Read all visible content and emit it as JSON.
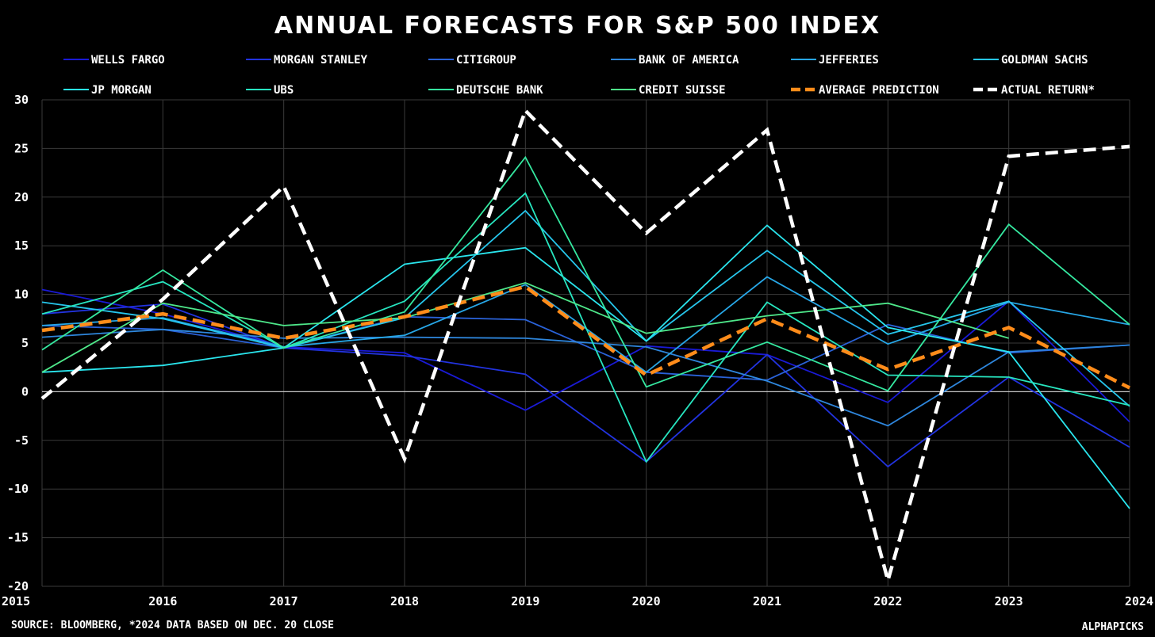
{
  "chart_data": {
    "type": "line",
    "title": "ANNUAL FORECASTS FOR S&P 500 INDEX",
    "source_note": "SOURCE: BLOOMBERG, *2024 DATA BASED ON DEC. 20 CLOSE",
    "watermark": "ALPHAPICKS",
    "x": [
      "2015",
      "2016",
      "2017",
      "2018",
      "2019",
      "2020",
      "2021",
      "2022",
      "2023",
      "2024"
    ],
    "xlabel": "",
    "ylabel": "",
    "ylim": [
      -20,
      30
    ],
    "yticks": [
      "30",
      "25",
      "20",
      "15",
      "10",
      "5",
      "0",
      "-5",
      "-10",
      "-15",
      "-20"
    ],
    "grid": true,
    "legend_position": "top",
    "series": [
      {
        "name": "WELLS FARGO",
        "color": "#1a1ad6",
        "dashed": false,
        "values": [
          10.5,
          8.0,
          4.6,
          4.0,
          -1.9,
          4.7,
          3.8,
          -1.1,
          9.3,
          -3.1
        ]
      },
      {
        "name": "MORGAN STANLEY",
        "color": "#2233e0",
        "dashed": false,
        "values": [
          8.0,
          9.0,
          4.5,
          3.7,
          1.8,
          -7.2,
          3.8,
          -7.7,
          1.5,
          -5.7
        ]
      },
      {
        "name": "CITIGROUP",
        "color": "#2a62d8",
        "dashed": false,
        "values": [
          6.8,
          6.4,
          4.5,
          7.7,
          7.4,
          2.0,
          1.2,
          6.9,
          4.0,
          4.8
        ]
      },
      {
        "name": "BANK OF AMERICA",
        "color": "#2e86dc",
        "dashed": false,
        "values": [
          5.6,
          6.4,
          5.5,
          5.6,
          5.5,
          4.6,
          1.1,
          -3.5,
          4.1,
          4.8
        ]
      },
      {
        "name": "JEFFERIES",
        "color": "#27a6e6",
        "dashed": false,
        "values": [
          6.8,
          7.6,
          4.6,
          5.8,
          11.0,
          2.0,
          11.8,
          4.9,
          9.2,
          6.9
        ]
      },
      {
        "name": "GOLDMAN SACHS",
        "color": "#26c6ec",
        "dashed": false,
        "values": [
          9.2,
          7.5,
          4.5,
          7.6,
          18.6,
          5.2,
          14.5,
          5.9,
          9.3,
          -1.5
        ]
      },
      {
        "name": "JP MORGAN",
        "color": "#2ae6ee",
        "dashed": false,
        "values": [
          2.0,
          2.7,
          4.5,
          13.1,
          14.8,
          5.2,
          17.1,
          6.6,
          4.1,
          -12.0
        ]
      },
      {
        "name": "UBS",
        "color": "#27e6c0",
        "dashed": false,
        "values": [
          8.0,
          11.3,
          4.5,
          9.3,
          20.4,
          -7.2,
          9.2,
          1.7,
          1.5,
          -1.4
        ]
      },
      {
        "name": "DEUTSCHE BANK",
        "color": "#35e8a0",
        "dashed": false,
        "values": [
          4.3,
          12.5,
          4.5,
          8.2,
          24.1,
          0.5,
          5.1,
          0.1,
          17.2,
          6.9
        ]
      },
      {
        "name": "CREDIT SUISSE",
        "color": "#4ee88a",
        "dashed": false,
        "values": [
          2.0,
          9.1,
          6.8,
          7.6,
          11.2,
          6.0,
          7.8,
          9.1,
          5.5,
          null
        ]
      },
      {
        "name": "AVERAGE PREDICTION",
        "color": "#ff8c1a",
        "dashed": true,
        "values": [
          6.3,
          8.0,
          5.5,
          7.7,
          10.8,
          1.7,
          7.5,
          2.3,
          6.6,
          0.4
        ]
      },
      {
        "name": "ACTUAL RETURN*",
        "color": "#ffffff",
        "dashed": true,
        "values": [
          -0.7,
          9.5,
          21.1,
          -6.9,
          28.9,
          16.3,
          26.9,
          -19.4,
          24.2,
          25.2
        ]
      }
    ]
  }
}
